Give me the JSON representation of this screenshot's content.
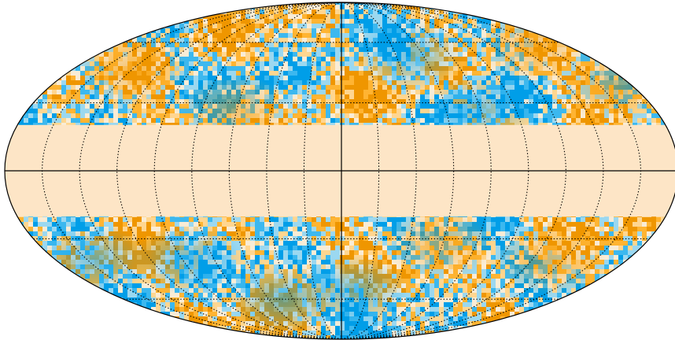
{
  "map": {
    "projection": "mollweide",
    "masked_latitude_band_deg": [
      -20,
      20
    ],
    "mask_color": "#fde5c6",
    "colors": {
      "cold_strong": "#009ee8",
      "cold_medium": "#3cb8ef",
      "cold_light": "#9bd8f0",
      "neutral": "#f9ecd6",
      "warm_light": "#ffd690",
      "warm_medium": "#ffb432",
      "warm_strong": "#ef9600"
    },
    "graticule": {
      "parallels_deg": [
        -60,
        -30,
        30,
        60
      ],
      "meridian_spacing_deg": 20,
      "line_style": "dotted",
      "line_color": "#000000"
    },
    "axes": {
      "equator": true,
      "central_meridian": true
    },
    "outline_color": "#000000"
  }
}
